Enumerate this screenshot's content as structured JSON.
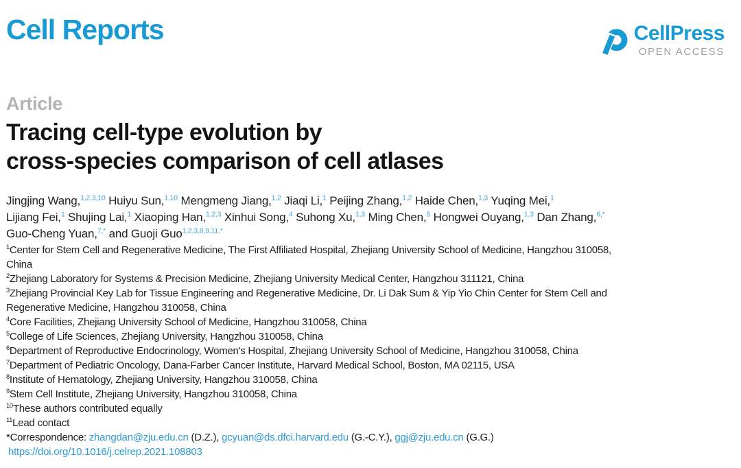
{
  "journal": {
    "name": "Cell Reports"
  },
  "publisher": {
    "name": "CellPress",
    "access": "OPEN ACCESS",
    "logo_icon": "cellpress-swirl-mark"
  },
  "article": {
    "kind": "Article",
    "title_line1": "Tracing cell-type evolution by",
    "title_line2": "cross-species comparison of cell atlases"
  },
  "authors": {
    "lines": [
      [
        {
          "name": "Jingjing Wang,",
          "sup": "1,2,3,10"
        },
        {
          "name": "Huiyu Sun,",
          "sup": "1,10"
        },
        {
          "name": "Mengmeng Jiang,",
          "sup": "1,2"
        },
        {
          "name": "Jiaqi Li,",
          "sup": "1"
        },
        {
          "name": "Peijing Zhang,",
          "sup": "1,2"
        },
        {
          "name": "Haide Chen,",
          "sup": "1,3"
        },
        {
          "name": "Yuqing Mei,",
          "sup": "1"
        }
      ],
      [
        {
          "name": "Lijiang Fei,",
          "sup": "1"
        },
        {
          "name": "Shujing Lai,",
          "sup": "1"
        },
        {
          "name": "Xiaoping Han,",
          "sup": "1,2,3"
        },
        {
          "name": "Xinhui Song,",
          "sup": "4"
        },
        {
          "name": "Suhong Xu,",
          "sup": "1,3"
        },
        {
          "name": "Ming Chen,",
          "sup": "5"
        },
        {
          "name": "Hongwei Ouyang,",
          "sup": "1,3"
        },
        {
          "name": "Dan Zhang,",
          "sup": "6,*"
        }
      ],
      [
        {
          "name": "Guo-Cheng Yuan,",
          "sup": "7,*"
        },
        {
          "name": "and Guoji Guo",
          "sup": "1,2,3,8,9,11,*"
        }
      ]
    ]
  },
  "affiliations": [
    {
      "sup": "1",
      "lines": [
        "Center for Stem Cell and Regenerative Medicine, The First Affiliated Hospital, Zhejiang University School of Medicine, Hangzhou 310058,",
        "China"
      ]
    },
    {
      "sup": "2",
      "lines": [
        "Zhejiang Laboratory for Systems & Precision Medicine, Zhejiang University Medical Center, Hangzhou 311121, China"
      ]
    },
    {
      "sup": "3",
      "lines": [
        "Zhejiang Provincial Key Lab for Tissue Engineering and Regenerative Medicine, Dr. Li Dak Sum & Yip Yio Chin Center for Stem Cell and",
        "Regenerative Medicine, Hangzhou 310058, China"
      ]
    },
    {
      "sup": "4",
      "lines": [
        "Core Facilities, Zhejiang University School of Medicine, Hangzhou 310058, China"
      ]
    },
    {
      "sup": "5",
      "lines": [
        "College of Life Sciences, Zhejiang University, Hangzhou 310058, China"
      ]
    },
    {
      "sup": "6",
      "lines": [
        "Department of Reproductive Endocrinology, Women's Hospital, Zhejiang University School of Medicine, Hangzhou 310058, China"
      ]
    },
    {
      "sup": "7",
      "lines": [
        "Department of Pediatric Oncology, Dana-Farber Cancer Institute, Harvard Medical School, Boston, MA 02115, USA"
      ]
    },
    {
      "sup": "8",
      "lines": [
        "Institute of Hematology, Zhejiang University, Hangzhou 310058, China"
      ]
    },
    {
      "sup": "9",
      "lines": [
        "Stem Cell Institute, Zhejiang University, Hangzhou 310058, China"
      ]
    },
    {
      "sup": "10",
      "lines": [
        "These authors contributed equally"
      ]
    },
    {
      "sup": "11",
      "lines": [
        "Lead contact"
      ]
    }
  ],
  "correspondence": {
    "label": "*Correspondence: ",
    "contacts": [
      {
        "email": "zhangdan@zju.edu.cn",
        "suffix": " (D.Z.), "
      },
      {
        "email": "gcyuan@ds.dfci.harvard.edu",
        "suffix": " (G.-C.Y.), "
      },
      {
        "email": "ggj@zju.edu.cn",
        "suffix": " (G.G.)"
      }
    ]
  },
  "doi": {
    "url": "https://doi.org/10.1016/j.celrep.2021.108803"
  },
  "colors": {
    "brand": "#189ad5",
    "superscript": "#44a5da",
    "link": "#2e9cd6",
    "article_kind_gray": "#b1b3b6",
    "open_access_gray": "#9ea0a3"
  }
}
